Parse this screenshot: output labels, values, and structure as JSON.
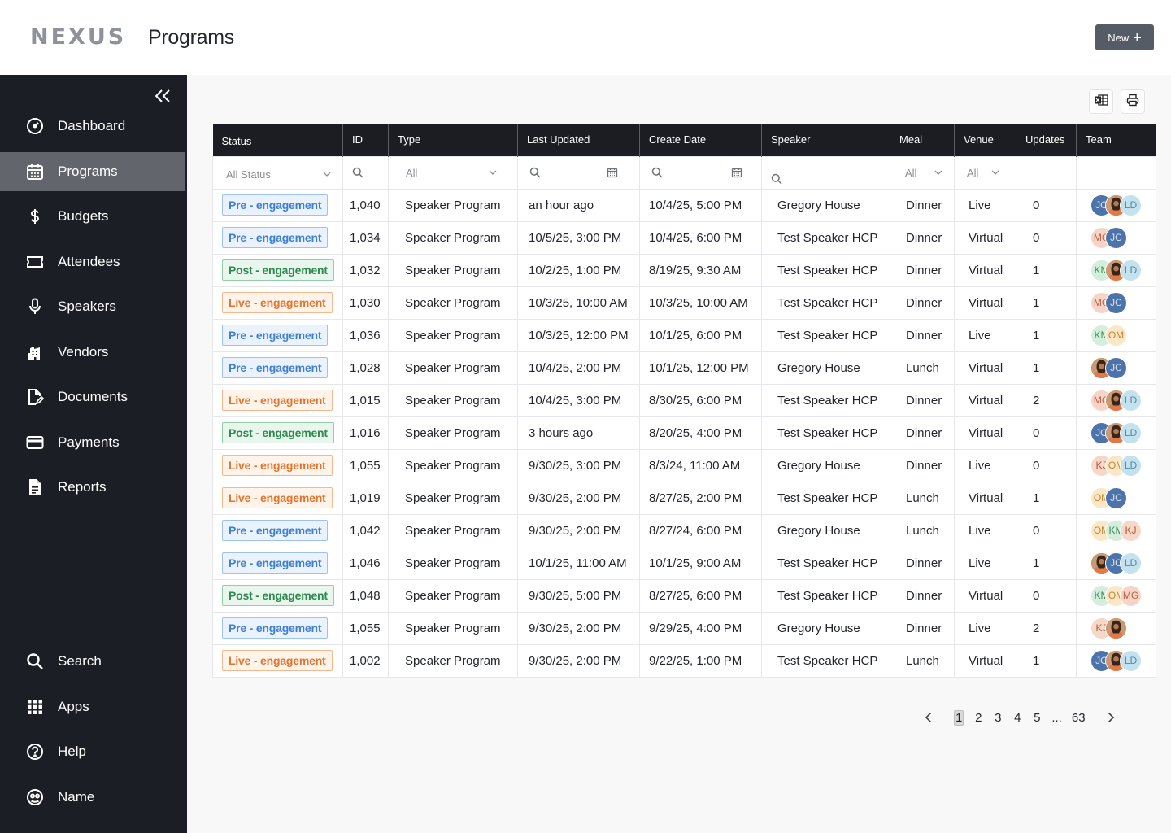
{
  "app": {
    "logo": "NEXUS",
    "page_title": "Programs",
    "new_button": "New"
  },
  "sidebar": {
    "collapse_icon": "double-chevron-left-icon",
    "items": [
      {
        "label": "Dashboard",
        "icon": "gauge-icon",
        "active": false
      },
      {
        "label": "Programs",
        "icon": "calendar-icon",
        "active": true
      },
      {
        "label": "Budgets",
        "icon": "dollar-icon",
        "active": false
      },
      {
        "label": "Attendees",
        "icon": "ticket-icon",
        "active": false
      },
      {
        "label": "Speakers",
        "icon": "microphone-icon",
        "active": false
      },
      {
        "label": "Vendors",
        "icon": "building-icon",
        "active": false
      },
      {
        "label": "Documents",
        "icon": "document-edit-icon",
        "active": false
      },
      {
        "label": "Payments",
        "icon": "credit-card-icon",
        "active": false
      },
      {
        "label": "Reports",
        "icon": "report-icon",
        "active": false
      }
    ],
    "bottom_items": [
      {
        "label": "Search",
        "icon": "search-icon"
      },
      {
        "label": "Apps",
        "icon": "grid-icon"
      },
      {
        "label": "Help",
        "icon": "help-icon"
      },
      {
        "label": "Name",
        "icon": "user-circle-icon"
      }
    ]
  },
  "toolbar": {
    "export_icon": "excel-icon",
    "print_icon": "print-icon"
  },
  "table": {
    "columns": [
      "Status",
      "ID",
      "Type",
      "Last Updated",
      "Create Date",
      "Speaker",
      "Meal",
      "Venue",
      "Updates",
      "Team"
    ],
    "filters": {
      "status": "All Status",
      "type": "All",
      "meal": "All",
      "venue": "All"
    },
    "rows": [
      {
        "status": "Pre - engagement",
        "kind": "pre",
        "id": "1,040",
        "type": "Speaker Program",
        "last_updated": "an hour ago",
        "create_date": "10/4/25, 5:00 PM",
        "speaker": "Gregory House",
        "meal": "Dinner",
        "venue": "Live",
        "updates": "0",
        "team": [
          "JC",
          "photo",
          "LD"
        ]
      },
      {
        "status": "Pre - engagement",
        "kind": "pre",
        "id": "1,034",
        "type": "Speaker Program",
        "last_updated": "10/5/25, 3:00 PM",
        "create_date": "10/4/25, 6:00 PM",
        "speaker": "Test Speaker HCP",
        "meal": "Dinner",
        "venue": "Virtual",
        "updates": "0",
        "team": [
          "MG",
          "JC"
        ]
      },
      {
        "status": "Post - engagement",
        "kind": "post",
        "id": "1,032",
        "type": "Speaker Program",
        "last_updated": "10/2/25, 1:00 PM",
        "create_date": "8/19/25, 9:30 AM",
        "speaker": "Test Speaker HCP",
        "meal": "Dinner",
        "venue": "Virtual",
        "updates": "1",
        "team": [
          "KM",
          "photo",
          "LD"
        ]
      },
      {
        "status": "Live - engagement",
        "kind": "live",
        "id": "1,030",
        "type": "Speaker Program",
        "last_updated": "10/3/25, 10:00 AM",
        "create_date": "10/3/25, 10:00 AM",
        "speaker": "Test Speaker HCP",
        "meal": "Dinner",
        "venue": "Virtual",
        "updates": "1",
        "team": [
          "MG",
          "JC"
        ]
      },
      {
        "status": "Pre - engagement",
        "kind": "pre",
        "id": "1,036",
        "type": "Speaker Program",
        "last_updated": "10/3/25, 12:00 PM",
        "create_date": "10/1/25, 6:00 PM",
        "speaker": "Test Speaker HCP",
        "meal": "Dinner",
        "venue": "Live",
        "updates": "1",
        "team": [
          "KM",
          "OM"
        ]
      },
      {
        "status": "Pre - engagement",
        "kind": "pre",
        "id": "1,028",
        "type": "Speaker Program",
        "last_updated": "10/4/25, 2:00 PM",
        "create_date": "10/1/25, 12:00 PM",
        "speaker": "Gregory House",
        "meal": "Lunch",
        "venue": "Virtual",
        "updates": "1",
        "team": [
          "photo",
          "JC"
        ]
      },
      {
        "status": "Live - engagement",
        "kind": "live",
        "id": "1,015",
        "type": "Speaker Program",
        "last_updated": "10/4/25, 3:00 PM",
        "create_date": "8/30/25, 6:00 PM",
        "speaker": "Test Speaker HCP",
        "meal": "Dinner",
        "venue": "Virtual",
        "updates": "2",
        "team": [
          "MG",
          "photo",
          "LD"
        ]
      },
      {
        "status": "Post - engagement",
        "kind": "post",
        "id": "1,016",
        "type": "Speaker Program",
        "last_updated": "3 hours ago",
        "create_date": "8/20/25, 4:00 PM",
        "speaker": "Test Speaker HCP",
        "meal": "Dinner",
        "venue": "Virtual",
        "updates": "0",
        "team": [
          "JC",
          "photo",
          "LD"
        ]
      },
      {
        "status": "Live - engagement",
        "kind": "live",
        "id": "1,055",
        "type": "Speaker Program",
        "last_updated": "9/30/25, 3:00 PM",
        "create_date": "8/3/24, 11:00 AM",
        "speaker": "Gregory House",
        "meal": "Dinner",
        "venue": "Live",
        "updates": "0",
        "team": [
          "KJ",
          "OM",
          "LD"
        ]
      },
      {
        "status": "Live - engagement",
        "kind": "live",
        "id": "1,019",
        "type": "Speaker Program",
        "last_updated": "9/30/25, 2:00 PM",
        "create_date": "8/27/25, 2:00 PM",
        "speaker": "Test Speaker HCP",
        "meal": "Lunch",
        "venue": "Virtual",
        "updates": "1",
        "team": [
          "OM",
          "JC"
        ]
      },
      {
        "status": "Pre - engagement",
        "kind": "pre",
        "id": "1,042",
        "type": "Speaker Program",
        "last_updated": "9/30/25, 2:00 PM",
        "create_date": "8/27/24, 6:00 PM",
        "speaker": "Gregory House",
        "meal": "Lunch",
        "venue": "Live",
        "updates": "0",
        "team": [
          "OM",
          "KM",
          "KJ"
        ]
      },
      {
        "status": "Pre - engagement",
        "kind": "pre",
        "id": "1,046",
        "type": "Speaker Program",
        "last_updated": "10/1/25, 11:00 AM",
        "create_date": "10/1/25, 9:00 AM",
        "speaker": "Test Speaker HCP",
        "meal": "Dinner",
        "venue": "Live",
        "updates": "1",
        "team": [
          "photo",
          "JC",
          "LD"
        ]
      },
      {
        "status": "Post - engagement",
        "kind": "post",
        "id": "1,048",
        "type": "Speaker Program",
        "last_updated": "9/30/25, 5:00 PM",
        "create_date": "8/27/25, 6:00 PM",
        "speaker": "Test Speaker HCP",
        "meal": "Dinner",
        "venue": "Virtual",
        "updates": "0",
        "team": [
          "KM",
          "OM",
          "MG"
        ]
      },
      {
        "status": "Pre - engagement",
        "kind": "pre",
        "id": "1,055",
        "type": "Speaker Program",
        "last_updated": "9/30/25, 2:00 PM",
        "create_date": "9/29/25, 4:00 PM",
        "speaker": "Gregory House",
        "meal": "Dinner",
        "venue": "Live",
        "updates": "2",
        "team": [
          "KJ",
          "photo"
        ]
      },
      {
        "status": "Live - engagement",
        "kind": "live",
        "id": "1,002",
        "type": "Speaker Program",
        "last_updated": "9/30/25, 2:00 PM",
        "create_date": "9/22/25, 1:00 PM",
        "speaker": "Test Speaker HCP",
        "meal": "Lunch",
        "venue": "Virtual",
        "updates": "1",
        "team": [
          "JC",
          "photo",
          "LD"
        ]
      }
    ]
  },
  "pagination": {
    "pages": [
      "1",
      "2",
      "3",
      "4",
      "5",
      "...",
      "63"
    ],
    "current": "1"
  }
}
